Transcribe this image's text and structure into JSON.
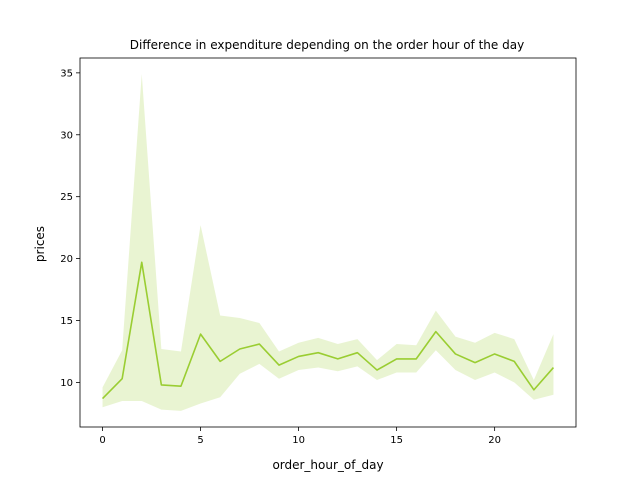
{
  "chart_data": {
    "type": "line",
    "title": "Difference in expenditure depending on the order hour of the day",
    "xlabel": "order_hour_of_day",
    "ylabel": "prices",
    "xlim": [
      -1.15,
      24.15
    ],
    "ylim": [
      6.4,
      36.2
    ],
    "xticks": [
      0,
      5,
      10,
      15,
      20
    ],
    "yticks": [
      10,
      15,
      20,
      25,
      30,
      35
    ],
    "grid": false,
    "legend": "none",
    "colors": {
      "line": "#9acd32",
      "band": "#9acd32"
    },
    "series": [
      {
        "x": [
          0,
          1,
          2,
          3,
          4,
          5,
          6,
          7,
          8,
          9,
          10,
          11,
          12,
          13,
          14,
          15,
          16,
          17,
          18,
          19,
          20,
          21,
          22,
          23
        ],
        "values": [
          8.7,
          10.3,
          19.7,
          9.8,
          9.7,
          13.9,
          11.7,
          12.7,
          13.1,
          11.4,
          12.1,
          12.4,
          11.9,
          12.4,
          11.0,
          11.9,
          11.9,
          14.1,
          12.3,
          11.6,
          12.3,
          11.7,
          9.4,
          11.2
        ],
        "ci_lower": [
          8.0,
          8.5,
          8.5,
          7.8,
          7.7,
          8.3,
          8.8,
          10.7,
          11.5,
          10.3,
          11.0,
          11.2,
          10.9,
          11.3,
          10.2,
          10.8,
          10.8,
          12.6,
          11.0,
          10.2,
          10.8,
          10.0,
          8.6,
          9.0
        ],
        "ci_upper": [
          9.6,
          12.6,
          34.9,
          12.7,
          12.5,
          22.7,
          15.4,
          15.2,
          14.8,
          12.5,
          13.2,
          13.6,
          13.1,
          13.5,
          11.8,
          13.1,
          13.0,
          15.8,
          13.7,
          13.2,
          14.0,
          13.5,
          10.2,
          13.9
        ]
      }
    ]
  }
}
